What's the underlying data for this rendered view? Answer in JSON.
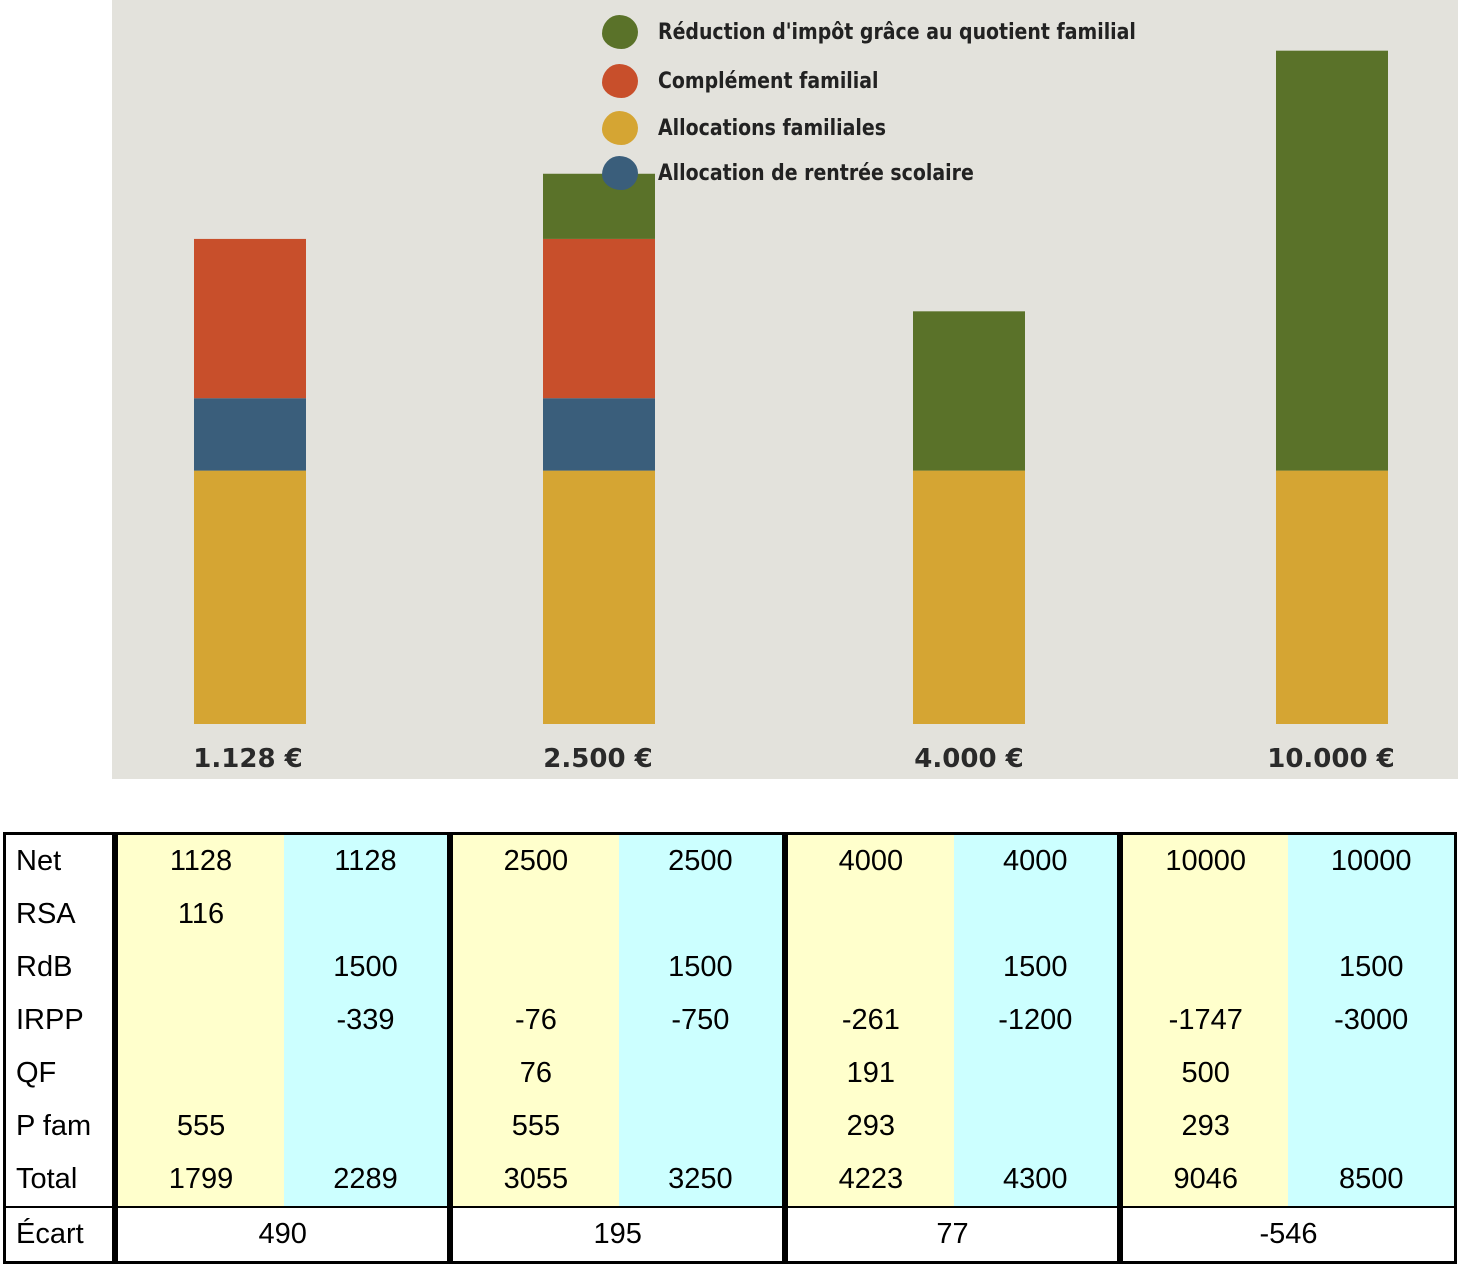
{
  "chart_data": {
    "type": "bar",
    "stacked": true,
    "categories": [
      "1.128 €",
      "2.500 €",
      "4.000 €",
      "10.000 €"
    ],
    "series": [
      {
        "name": "Allocations familiales",
        "color": "#d5a533",
        "values": [
          35,
          35,
          35,
          35
        ]
      },
      {
        "name": "Allocation de rentrée scolaire",
        "color": "#3a5e7b",
        "values": [
          10,
          10,
          0,
          0
        ]
      },
      {
        "name": "Complément familial",
        "color": "#c84f2b",
        "values": [
          22,
          22,
          0,
          0
        ]
      },
      {
        "name": "Réduction d'impôt grâce au quotient familial",
        "color": "#5a7229",
        "values": [
          0,
          9,
          22,
          58
        ]
      }
    ],
    "legend_order": [
      3,
      2,
      0,
      1
    ],
    "legend_position": "top",
    "grid": false,
    "ylim": [
      0,
      100
    ]
  },
  "table": {
    "rows": [
      {
        "label": "Net",
        "values": [
          "1128",
          "1128",
          "2500",
          "2500",
          "4000",
          "4000",
          "10000",
          "10000"
        ]
      },
      {
        "label": "RSA",
        "values": [
          "116",
          "",
          "",
          "",
          "",
          "",
          "",
          ""
        ]
      },
      {
        "label": "RdB",
        "values": [
          "",
          "1500",
          "",
          "1500",
          "",
          "1500",
          "",
          "1500"
        ]
      },
      {
        "label": "IRPP",
        "values": [
          "",
          "-339",
          "-76",
          "-750",
          "-261",
          "-1200",
          "-1747",
          "-3000"
        ]
      },
      {
        "label": "QF",
        "values": [
          "",
          "",
          "76",
          "",
          "191",
          "",
          "500",
          ""
        ]
      },
      {
        "label": "P fam",
        "values": [
          "555",
          "",
          "555",
          "",
          "293",
          "",
          "293",
          ""
        ]
      },
      {
        "label": "Total",
        "values": [
          "1799",
          "2289",
          "3055",
          "3250",
          "4223",
          "4300",
          "9046",
          "8500"
        ]
      }
    ],
    "ecart": {
      "label": "Écart",
      "values": [
        "490",
        "195",
        "77",
        "-546"
      ]
    }
  }
}
